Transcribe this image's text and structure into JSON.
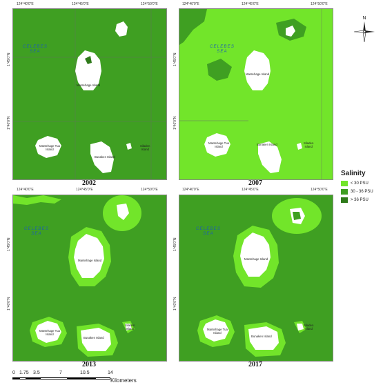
{
  "colors": {
    "below_30": "#72e52a",
    "mid": "#3f9f22",
    "above_36": "#2f7a1a",
    "land": "#ffffff",
    "sea_label": "#1d5fb0"
  },
  "panels": [
    {
      "year": "2002",
      "top_ticks": [
        "124°40'0\"E",
        "124°45'0\"E",
        "124°50'0\"E"
      ],
      "left_ticks": [
        "1°45'0\"N",
        "1°40'0\"N"
      ],
      "sea_label": "CELEBES\nSEA",
      "islands": [
        {
          "name": "Mantehage Island"
        },
        {
          "name": "Mantehage Tua\nIsland"
        },
        {
          "name": "Bunaken Island"
        },
        {
          "name": "Siladen\nIsland"
        }
      ]
    },
    {
      "year": "2007",
      "top_ticks": [
        "124°40'0\"E",
        "124°45'0\"E",
        "124°50'0\"E"
      ],
      "left_ticks": [
        "1°45'0\"N",
        "1°40'0\"N"
      ],
      "sea_label": "CELEBES\nSEA",
      "islands": [
        {
          "name": "Mantehage Island"
        },
        {
          "name": "Mantehage Tua\nIsland"
        },
        {
          "name": "Bunaken Island"
        },
        {
          "name": "Siladen\nIsland"
        }
      ]
    },
    {
      "year": "2013",
      "top_ticks": [
        "124°40'0\"E",
        "124°45'0\"E",
        "124°50'0\"E"
      ],
      "left_ticks": [
        "1°45'0\"N",
        "1°40'0\"N"
      ],
      "sea_label": "CELEBES\nSEA",
      "islands": [
        {
          "name": "Mantehage Island"
        },
        {
          "name": "Mantehage Tua\nIsland"
        },
        {
          "name": "Bunaken Island"
        },
        {
          "name": "Siladen\nIsland"
        }
      ]
    },
    {
      "year": "2017",
      "top_ticks": [
        "124°40'0\"E",
        "124°45'0\"E",
        "124°50'0\"E"
      ],
      "left_ticks": [
        "1°45'0\"N",
        "1°40'0\"N"
      ],
      "sea_label": "CELEBES\nSEA",
      "islands": [
        {
          "name": "Mantehage Island"
        },
        {
          "name": "Mantehage Tua\nIsland"
        },
        {
          "name": "Bunaken Island"
        },
        {
          "name": "Siladen\nIsland"
        }
      ]
    }
  ],
  "legend": {
    "title": "Salinity",
    "items": [
      {
        "label": "< 30 PSU",
        "color": "#72e52a"
      },
      {
        "label": "30 - 36 PSU",
        "color": "#3f9f22"
      },
      {
        "label": "> 36 PSU",
        "color": "#2f7a1a"
      }
    ]
  },
  "north_arrow": {
    "label": "N",
    "icon": "north-arrow-icon"
  },
  "scale_bar": {
    "ticks": [
      "0",
      "1.75",
      "3.5",
      "7",
      "10.5",
      "14"
    ],
    "unit": "Kilometers"
  }
}
